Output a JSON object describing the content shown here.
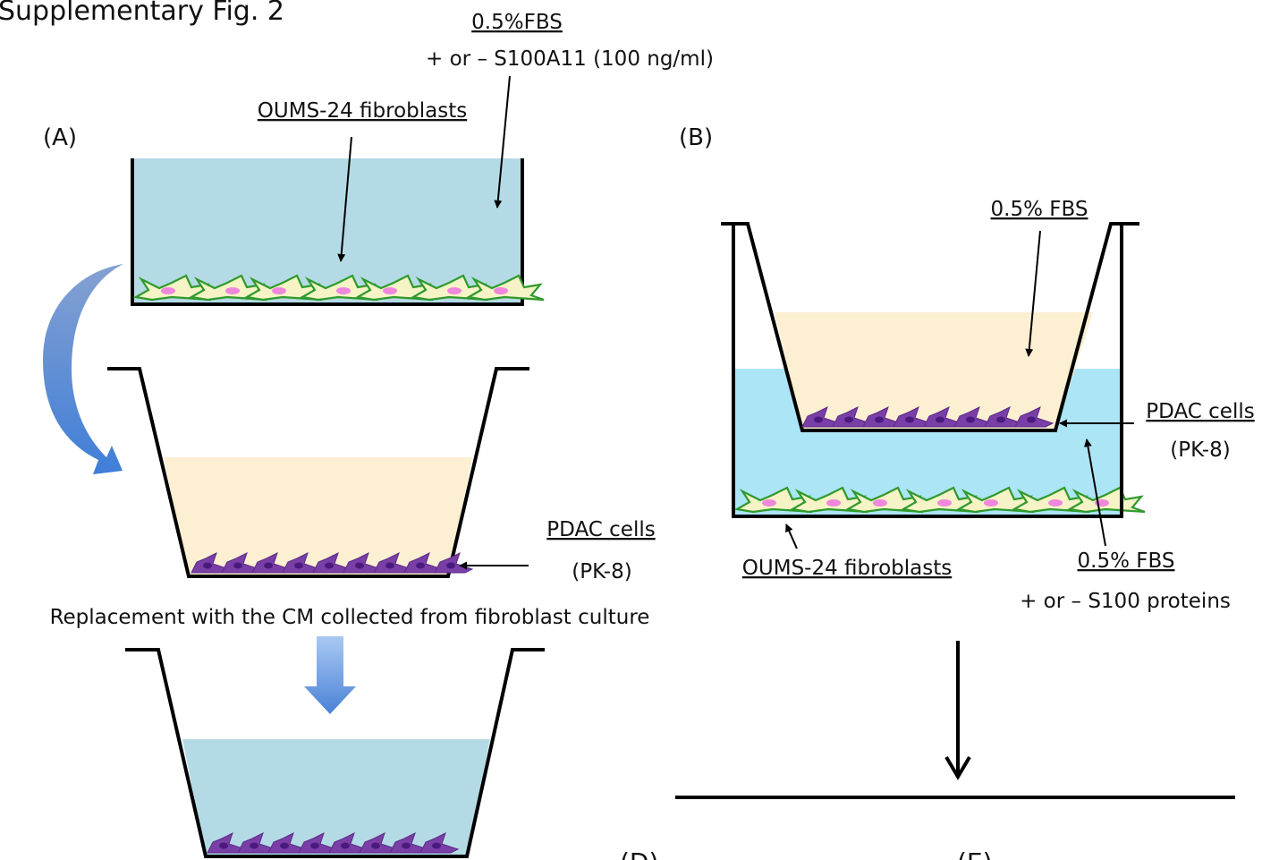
{
  "figure_title": "Supplementary Fig. 2",
  "panel_a": {
    "label": "(A)",
    "medium_label": "0.5%FBS",
    "treatment_label": "+ or – S100A11 (100 ng/ml)",
    "fibroblast_label": "OUMS-24 fibroblasts",
    "pdac_label": "PDAC cells",
    "pdac_line_label": "(PK-8)",
    "replacement_text": "Replacement  with the CM collected from fibroblast culture"
  },
  "panel_b": {
    "label": "(B)",
    "upper_medium_label": "0.5% FBS",
    "pdac_label": "PDAC cells",
    "pdac_line_label": "(PK-8)",
    "fibroblast_label": "OUMS-24 fibroblasts",
    "lower_medium_label": "0.5% FBS",
    "treatment_label": "+ or – S100 proteins"
  },
  "cut_off_labels": [
    "(D)",
    "(E)"
  ],
  "colors": {
    "conditioned_medium": "#b4dbe5",
    "fresh_medium": "#fcefd2",
    "lower_chamber_medium": "#ace5f6",
    "fibroblast_outline": "#2f9a2c",
    "fibroblast_fill": "#f6f3c6",
    "fibroblast_nucleus": "#ef88dc",
    "pdac_cell": "#7a3fa6",
    "pdac_nucleus": "#4a1a7e",
    "transfer_arrow": "#4a86d4"
  }
}
